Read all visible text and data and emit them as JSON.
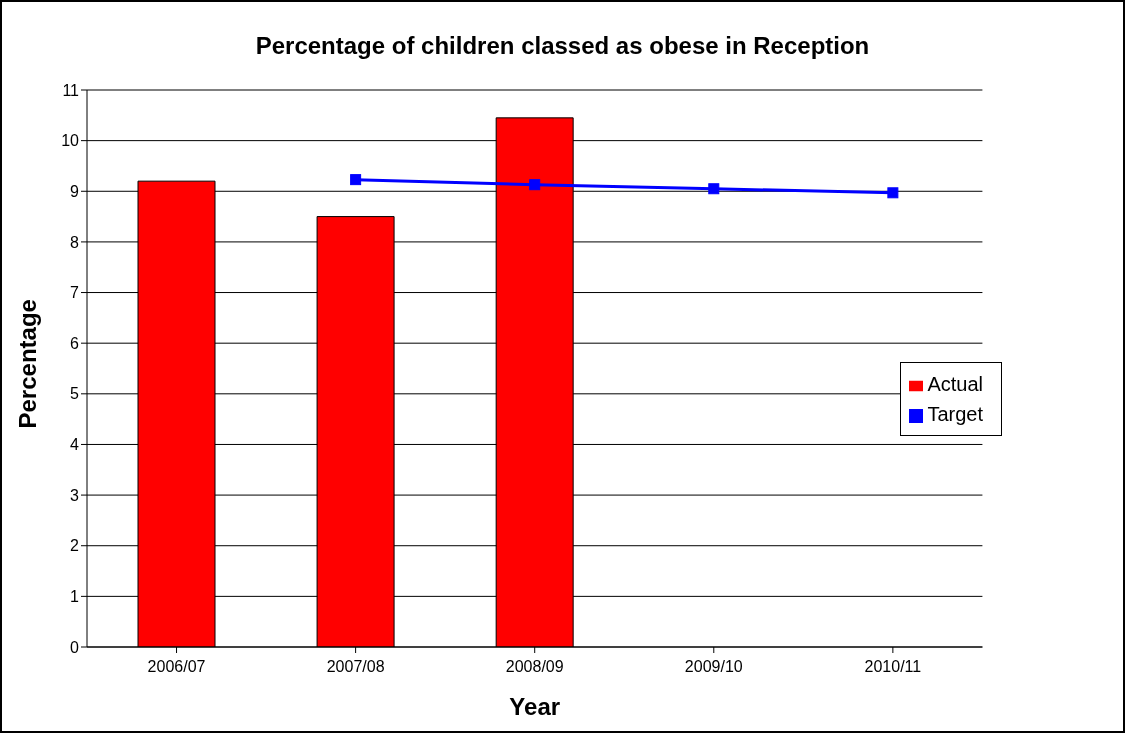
{
  "chart_data": {
    "type": "bar",
    "title": "Percentage of children classed as obese in Reception",
    "xlabel": "Year",
    "ylabel": "Percentage",
    "categories": [
      "2006/07",
      "2007/08",
      "2008/09",
      "2009/10",
      "2010/11"
    ],
    "series": [
      {
        "name": "Actual",
        "color": "#ff0000",
        "values": [
          9.2,
          8.5,
          10.45,
          null,
          null
        ]
      },
      {
        "name": "Target",
        "type": "line",
        "color": "#0000ff",
        "marker": "square",
        "values": [
          null,
          9.23,
          9.13,
          9.05,
          8.97
        ]
      }
    ],
    "ylim": [
      0,
      11
    ],
    "yticks": [
      0,
      1,
      2,
      3,
      4,
      5,
      6,
      7,
      8,
      9,
      10,
      11
    ],
    "grid": "y",
    "legend": "right"
  }
}
